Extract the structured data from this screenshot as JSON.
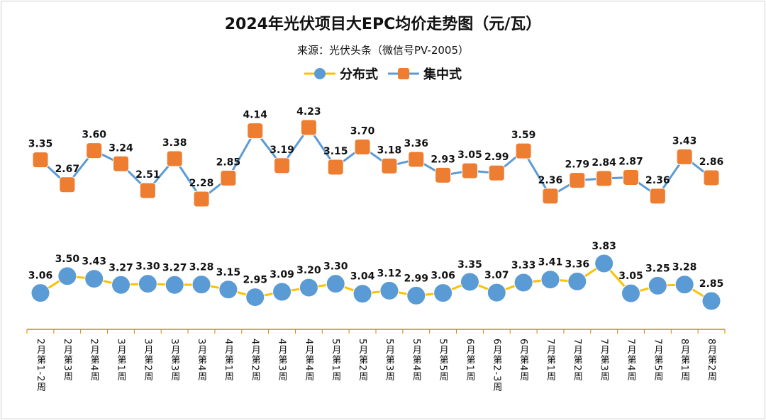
{
  "chart_data": {
    "type": "line",
    "title": "2024年光伏项目大EPC均价走势图（元/瓦）",
    "subtitle": "来源：光伏头条（微信号PV-2005）",
    "legend_position": "top",
    "grid": false,
    "categories": [
      "2月第1-2周",
      "2月第3周",
      "2月第4周",
      "3月第1周",
      "3月第2周",
      "3月第3周",
      "3月第4周",
      "4月第1周",
      "4月第2周",
      "4月第3周",
      "4月第4周",
      "5月第1周",
      "5月第2周",
      "5月第3周",
      "5月第4周",
      "5月第5周",
      "6月第1周",
      "6月第2-3周",
      "6月第4周",
      "7月第1周",
      "7月第2周",
      "7月第3周",
      "7月第4周",
      "7月第5周",
      "8月第1周",
      "8月第2周"
    ],
    "series": [
      {
        "name": "分布式",
        "line_color": "#FFC000",
        "marker": "circle",
        "marker_color": "#5B9BD5",
        "values": [
          3.06,
          3.5,
          3.43,
          3.27,
          3.3,
          3.27,
          3.28,
          3.15,
          2.95,
          3.09,
          3.2,
          3.3,
          3.04,
          3.12,
          2.99,
          3.06,
          3.35,
          3.07,
          3.33,
          3.41,
          3.36,
          3.83,
          3.05,
          3.25,
          3.28,
          2.85
        ]
      },
      {
        "name": "集中式",
        "line_color": "#5B9BD5",
        "marker": "square",
        "marker_color": "#ED7D31",
        "values": [
          3.35,
          2.67,
          3.6,
          3.24,
          2.51,
          3.38,
          2.28,
          2.85,
          4.14,
          3.19,
          4.23,
          3.15,
          3.7,
          3.18,
          3.36,
          2.93,
          3.05,
          2.99,
          3.59,
          2.36,
          2.79,
          2.84,
          2.87,
          2.36,
          3.43,
          2.86
        ]
      }
    ]
  }
}
